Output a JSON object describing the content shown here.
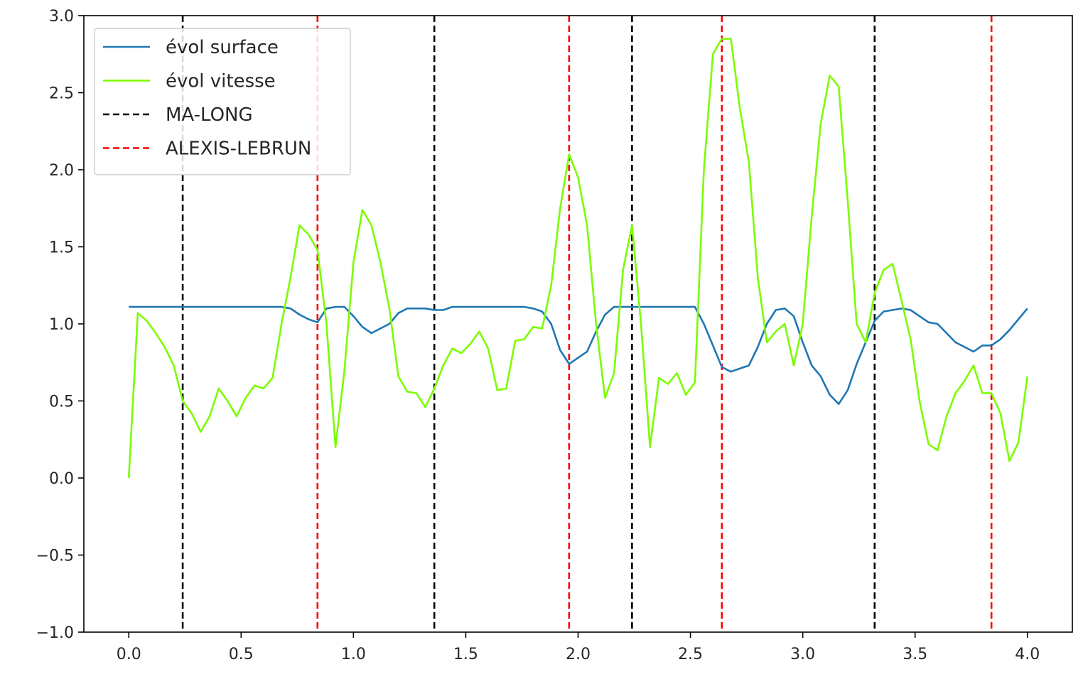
{
  "chart_data": {
    "type": "line",
    "title": "",
    "xlabel": "",
    "ylabel": "",
    "xlim": [
      -0.2,
      4.2
    ],
    "ylim": [
      -1.0,
      3.0
    ],
    "x_ticks": [
      "0.0",
      "0.5",
      "1.0",
      "1.5",
      "2.0",
      "2.5",
      "3.0",
      "3.5",
      "4.0"
    ],
    "y_ticks": [
      "−1.0",
      "−0.5",
      "0.0",
      "0.5",
      "1.0",
      "1.5",
      "2.0",
      "2.5",
      "3.0"
    ],
    "grid": false,
    "legend_position": "top-left",
    "series": [
      {
        "name": "évol surface",
        "color": "#1f77b4",
        "style": "solid",
        "x": [
          0.0,
          0.04,
          0.08,
          0.12,
          0.16,
          0.2,
          0.24,
          0.28,
          0.32,
          0.36,
          0.4,
          0.44,
          0.48,
          0.52,
          0.56,
          0.6,
          0.64,
          0.68,
          0.72,
          0.76,
          0.8,
          0.84,
          0.88,
          0.92,
          0.96,
          1.0,
          1.04,
          1.08,
          1.12,
          1.16,
          1.2,
          1.24,
          1.28,
          1.32,
          1.36,
          1.4,
          1.44,
          1.48,
          1.52,
          1.56,
          1.6,
          1.64,
          1.68,
          1.72,
          1.76,
          1.8,
          1.84,
          1.88,
          1.92,
          1.96,
          2.0,
          2.04,
          2.08,
          2.12,
          2.16,
          2.2,
          2.24,
          2.28,
          2.32,
          2.36,
          2.4,
          2.44,
          2.48,
          2.52,
          2.56,
          2.6,
          2.64,
          2.68,
          2.72,
          2.76,
          2.8,
          2.84,
          2.88,
          2.92,
          2.96,
          3.0,
          3.04,
          3.08,
          3.12,
          3.16,
          3.2,
          3.24,
          3.28,
          3.32,
          3.36,
          3.4,
          3.44,
          3.48,
          3.52,
          3.56,
          3.6,
          3.64,
          3.68,
          3.72,
          3.76,
          3.8,
          3.84,
          3.88,
          3.92,
          3.96,
          4.0
        ],
        "y": [
          1.11,
          1.11,
          1.11,
          1.11,
          1.11,
          1.11,
          1.11,
          1.11,
          1.11,
          1.11,
          1.11,
          1.11,
          1.11,
          1.11,
          1.11,
          1.11,
          1.11,
          1.11,
          1.1,
          1.06,
          1.03,
          1.01,
          1.1,
          1.11,
          1.11,
          1.05,
          0.98,
          0.94,
          0.97,
          1.0,
          1.07,
          1.1,
          1.1,
          1.1,
          1.09,
          1.09,
          1.11,
          1.11,
          1.11,
          1.11,
          1.11,
          1.11,
          1.11,
          1.11,
          1.11,
          1.1,
          1.08,
          1.0,
          0.83,
          0.74,
          0.78,
          0.82,
          0.95,
          1.06,
          1.11,
          1.11,
          1.11,
          1.11,
          1.11,
          1.11,
          1.11,
          1.11,
          1.11,
          1.11,
          1.0,
          0.86,
          0.72,
          0.69,
          0.71,
          0.73,
          0.85,
          1.0,
          1.09,
          1.1,
          1.05,
          0.88,
          0.73,
          0.66,
          0.54,
          0.48,
          0.57,
          0.74,
          0.88,
          1.02,
          1.08,
          1.09,
          1.1,
          1.09,
          1.05,
          1.01,
          1.0,
          0.94,
          0.88,
          0.85,
          0.82,
          0.86,
          0.86,
          0.9,
          0.96,
          1.03,
          1.1
        ]
      },
      {
        "name": "évol vitesse",
        "color": "#7cfc00",
        "style": "solid",
        "x": [
          0.0,
          0.04,
          0.08,
          0.12,
          0.16,
          0.2,
          0.24,
          0.28,
          0.32,
          0.36,
          0.4,
          0.44,
          0.48,
          0.52,
          0.56,
          0.6,
          0.64,
          0.68,
          0.72,
          0.76,
          0.8,
          0.84,
          0.88,
          0.92,
          0.96,
          1.0,
          1.04,
          1.08,
          1.12,
          1.16,
          1.2,
          1.24,
          1.28,
          1.32,
          1.36,
          1.4,
          1.44,
          1.48,
          1.52,
          1.56,
          1.6,
          1.64,
          1.68,
          1.72,
          1.76,
          1.8,
          1.84,
          1.88,
          1.92,
          1.96,
          2.0,
          2.04,
          2.08,
          2.12,
          2.16,
          2.2,
          2.24,
          2.28,
          2.32,
          2.36,
          2.4,
          2.44,
          2.48,
          2.52,
          2.56,
          2.6,
          2.64,
          2.68,
          2.72,
          2.76,
          2.8,
          2.84,
          2.88,
          2.92,
          2.96,
          3.0,
          3.04,
          3.08,
          3.12,
          3.16,
          3.2,
          3.24,
          3.28,
          3.32,
          3.36,
          3.4,
          3.44,
          3.48,
          3.52,
          3.56,
          3.6,
          3.64,
          3.68,
          3.72,
          3.76,
          3.8,
          3.84,
          3.88,
          3.92,
          3.96,
          4.0
        ],
        "y": [
          0.0,
          1.07,
          1.02,
          0.94,
          0.85,
          0.73,
          0.5,
          0.42,
          0.3,
          0.4,
          0.58,
          0.5,
          0.4,
          0.52,
          0.6,
          0.58,
          0.65,
          1.0,
          1.3,
          1.64,
          1.58,
          1.48,
          1.0,
          0.2,
          0.7,
          1.4,
          1.74,
          1.64,
          1.4,
          1.1,
          0.66,
          0.56,
          0.55,
          0.46,
          0.58,
          0.73,
          0.84,
          0.81,
          0.87,
          0.95,
          0.84,
          0.57,
          0.58,
          0.89,
          0.9,
          0.98,
          0.97,
          1.25,
          1.75,
          2.1,
          1.95,
          1.64,
          1.0,
          0.52,
          0.68,
          1.35,
          1.64,
          1.0,
          0.2,
          0.65,
          0.61,
          0.68,
          0.54,
          0.62,
          2.0,
          2.75,
          2.85,
          2.85,
          2.4,
          2.05,
          1.3,
          0.88,
          0.95,
          1.0,
          0.73,
          1.0,
          1.7,
          2.3,
          2.61,
          2.54,
          1.8,
          1.0,
          0.88,
          1.2,
          1.35,
          1.39,
          1.15,
          0.9,
          0.5,
          0.22,
          0.18,
          0.4,
          0.55,
          0.63,
          0.73,
          0.55,
          0.55,
          0.42,
          0.11,
          0.23,
          0.66
        ]
      }
    ],
    "vlines": [
      {
        "name": "MA-LONG",
        "color": "#000000",
        "style": "dashed",
        "x": [
          0.24,
          1.36,
          2.24,
          3.32
        ]
      },
      {
        "name": "ALEXIS-LEBRUN",
        "color": "#ff0000",
        "style": "dashed",
        "x": [
          0.84,
          1.96,
          2.64,
          3.84
        ]
      }
    ]
  }
}
